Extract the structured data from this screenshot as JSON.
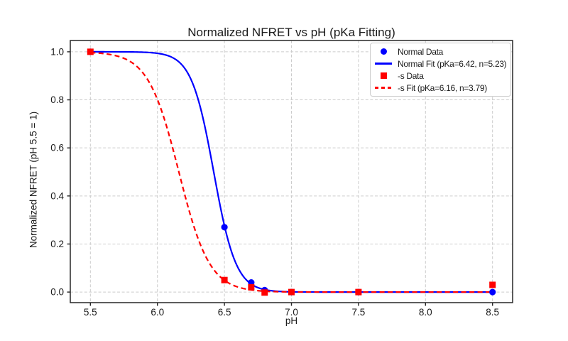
{
  "chart_data": {
    "type": "line",
    "title": "Normalized NFRET vs pH (pKa Fitting)",
    "xlabel": "pH",
    "ylabel": "Normalized NFRET (pH 5.5 = 1)",
    "xlim": [
      5.35,
      8.65
    ],
    "ylim": [
      -0.044,
      1.047
    ],
    "xticks": [
      5.5,
      6.0,
      6.5,
      7.0,
      7.5,
      8.0,
      8.5
    ],
    "yticks": [
      0.0,
      0.2,
      0.4,
      0.6,
      0.8,
      1.0
    ],
    "grid": true,
    "grid_style": "dashed",
    "legend_position": "upper right",
    "series": [
      {
        "name": "Normal Data",
        "type": "scatter",
        "marker": "circle",
        "color": "#0000ff",
        "x": [
          5.5,
          6.5,
          6.7,
          6.8,
          7.0,
          7.5,
          8.5
        ],
        "y": [
          1.0,
          0.27,
          0.04,
          0.008,
          0.0,
          0.0,
          0.0
        ]
      },
      {
        "name": "Normal Fit (pKa=6.42, n=5.23)",
        "type": "fit_curve",
        "line_style": "solid",
        "color": "#0000ff",
        "pKa": 6.42,
        "n": 5.23,
        "x_range": [
          5.5,
          8.5
        ]
      },
      {
        "name": "-s Data",
        "type": "scatter",
        "marker": "square",
        "color": "#ff0000",
        "x": [
          5.5,
          6.5,
          6.7,
          6.8,
          7.0,
          7.5,
          8.5
        ],
        "y": [
          1.0,
          0.05,
          0.02,
          -0.002,
          0.0,
          0.0,
          0.03
        ]
      },
      {
        "name": "-s Fit (pKa=6.16, n=3.79)",
        "type": "fit_curve",
        "line_style": "dashed",
        "color": "#ff0000",
        "pKa": 6.16,
        "n": 3.79,
        "x_range": [
          5.5,
          8.5
        ]
      }
    ]
  }
}
